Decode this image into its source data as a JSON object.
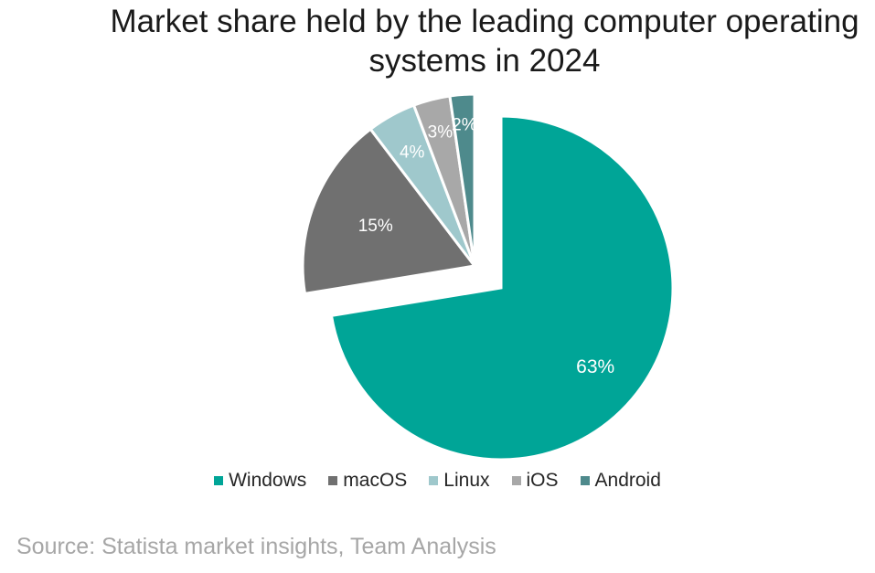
{
  "title_line1": "Market share held by the leading computer operating",
  "title_line2": "systems in 2024",
  "source": "Source: Statista market insights,  Team Analysis",
  "chart_data": {
    "type": "pie",
    "title": "Market share held by the leading computer operating systems in 2024",
    "categories": [
      "Windows",
      "macOS",
      "Linux",
      "iOS",
      "Android"
    ],
    "values": [
      63,
      15,
      4,
      3,
      2
    ],
    "labels": [
      "63%",
      "15%",
      "4%",
      "3%",
      "2%"
    ],
    "colors": [
      "#00a597",
      "#707070",
      "#9fc8cc",
      "#a8a8a8",
      "#4e8a8c"
    ],
    "exploded": [
      "Windows"
    ],
    "legend": "bottom"
  }
}
